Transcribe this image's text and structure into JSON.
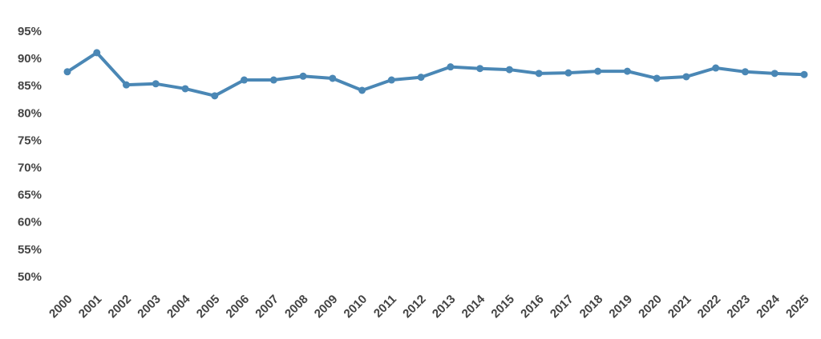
{
  "chart_data": {
    "type": "line",
    "categories": [
      "2000",
      "2001",
      "2002",
      "2003",
      "2004",
      "2005",
      "2006",
      "2007",
      "2008",
      "2009",
      "2010",
      "2011",
      "2012",
      "2013",
      "2014",
      "2015",
      "2016",
      "2017",
      "2018",
      "2019",
      "2020",
      "2021",
      "2022",
      "2023",
      "2024",
      "2025"
    ],
    "series": [
      {
        "color": "#4a87b5",
        "values": [
          87.7,
          91.2,
          85.3,
          85.5,
          84.6,
          83.3,
          86.2,
          86.2,
          86.9,
          86.5,
          84.3,
          86.2,
          86.7,
          88.6,
          88.3,
          88.1,
          87.4,
          87.5,
          87.8,
          87.8,
          86.5,
          86.8,
          88.4,
          87.7,
          87.4,
          87.2
        ]
      }
    ],
    "ylim": [
      50,
      95
    ],
    "yticks": [
      {
        "value": 50,
        "label": "50%"
      },
      {
        "value": 55,
        "label": "55%"
      },
      {
        "value": 60,
        "label": "60%"
      },
      {
        "value": 65,
        "label": "65%"
      },
      {
        "value": 70,
        "label": "70%"
      },
      {
        "value": 75,
        "label": "75%"
      },
      {
        "value": 80,
        "label": "80%"
      },
      {
        "value": 85,
        "label": "85%"
      },
      {
        "value": 90,
        "label": "90%"
      },
      {
        "value": 95,
        "label": "95%"
      }
    ],
    "grid": false
  }
}
